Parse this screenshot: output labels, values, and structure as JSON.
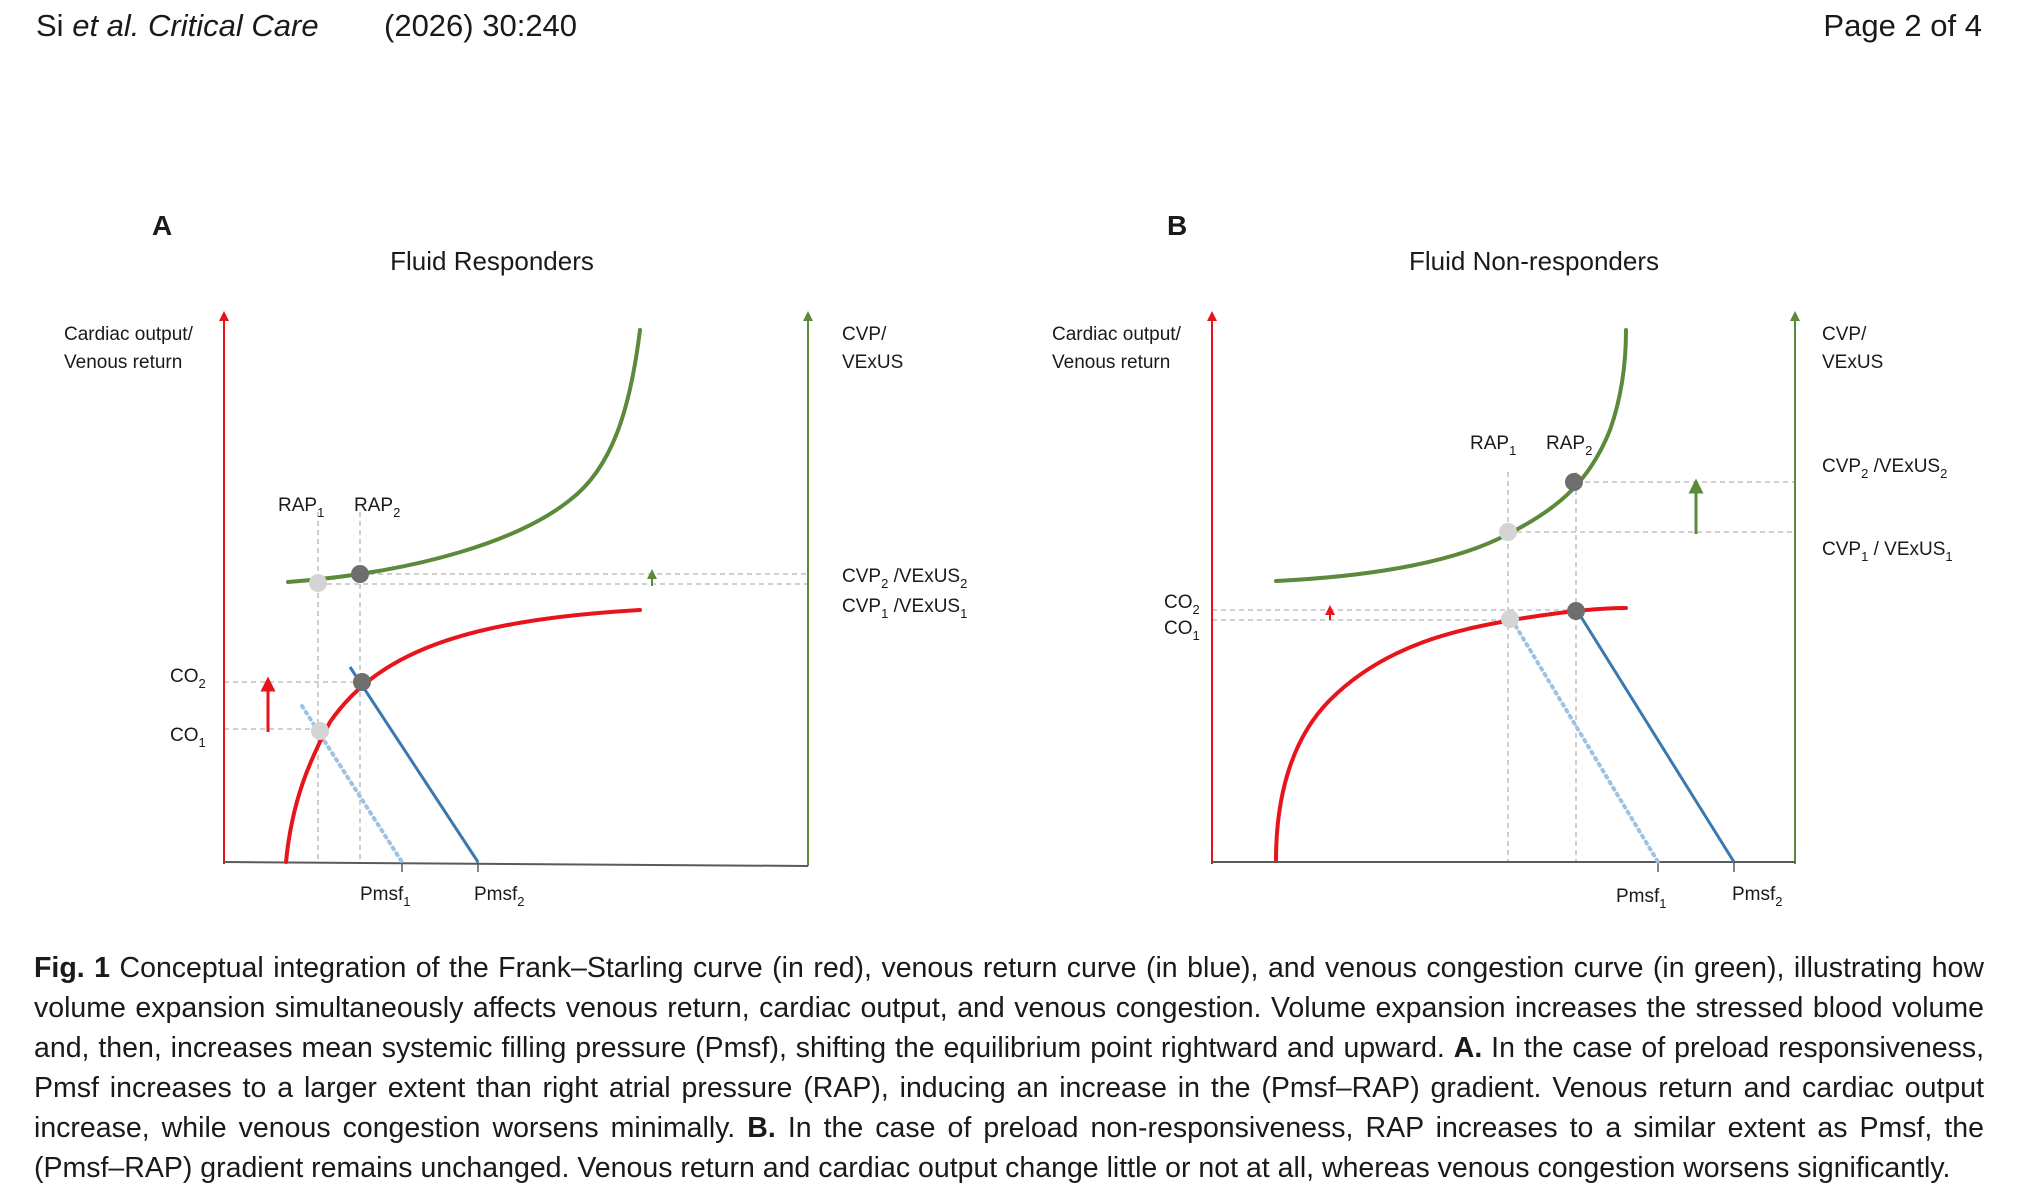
{
  "header": {
    "authors": "Si",
    "etal": "et al.",
    "journal": "Critical Care",
    "citation": "(2026) 30:240",
    "page": "Page 2 of 4"
  },
  "panels": [
    {
      "letter": "A",
      "title": "Fluid Responders",
      "y_axis_label": [
        "Cardiac output/",
        "Venous return"
      ],
      "right_axis_label": [
        "CVP/",
        "VExUS"
      ],
      "labels": {
        "rap1": "RAP",
        "rap1_sub": "1",
        "rap2": "RAP",
        "rap2_sub": "2",
        "co2": "CO",
        "co2_sub": "2",
        "co1": "CO",
        "co1_sub": "1",
        "pmsf1": "Pmsf",
        "pmsf1_sub": "1",
        "pmsf2": "Pmsf",
        "pmsf2_sub": "2",
        "cvp2_a": "CVP",
        "cvp2_sub": "2",
        "cvp2_b": " /VExUS",
        "cvp2_b_sub": "2",
        "cvp1_a": "CVP",
        "cvp1_sub": "1",
        "cvp1_b": " /VExUS",
        "cvp1_b_sub": "1"
      }
    },
    {
      "letter": "B",
      "title": "Fluid Non-responders",
      "y_axis_label": [
        "Cardiac output/",
        "Venous return"
      ],
      "right_axis_label": [
        "CVP/",
        "VExUS"
      ],
      "labels": {
        "rap1": "RAP",
        "rap1_sub": "1",
        "rap2": "RAP",
        "rap2_sub": "2",
        "co2": "CO",
        "co2_sub": "2",
        "co1": "CO",
        "co1_sub": "1",
        "pmsf1": "Pmsf",
        "pmsf1_sub": "1",
        "pmsf2": "Pmsf",
        "pmsf2_sub": "2",
        "cvp2_a": "CVP",
        "cvp2_sub": "2",
        "cvp2_b": " /VExUS",
        "cvp2_b_sub": "2",
        "cvp1_a": "CVP",
        "cvp1_sub": "1",
        "cvp1_b": " / VExUS",
        "cvp1_b_sub": "1"
      }
    }
  ],
  "colors": {
    "frank_starling": "#e8141b",
    "venous_return": "#3a78b0",
    "venous_return_dotted": "#9ec3e2",
    "venous_congestion": "#5a8a3a",
    "equilibrium_point": "#6e6e6e",
    "baseline_point": "#d4d4d4",
    "guides": "#b3b3b3"
  },
  "caption": {
    "label": "Fig. 1",
    "s1": "Conceptual integration of the Frank–Starling curve (in red), venous return curve (in blue), and venous congestion curve (in green), illustrating how volume expansion simultaneously affects venous return, cardiac output, and venous congestion. Volume expansion increases the stressed blood volume and, then, increases mean systemic filling pressure (Pmsf), shifting the equilibrium point rightward and upward.",
    "a_label": "A.",
    "s2": "In the case of preload responsiveness, Pmsf increases to a larger extent than right atrial pressure (RAP), inducing an increase in the (Pmsf–RAP) gradient. Venous return and cardiac output increase, while venous congestion worsens minimally.",
    "b_label": "B.",
    "s3": "In the case of preload non-responsiveness, RAP increases to a similar extent as Pmsf, the (Pmsf–RAP) gradient remains unchanged. Venous return and cardiac output change little or not at all, whereas venous congestion worsens significantly."
  }
}
